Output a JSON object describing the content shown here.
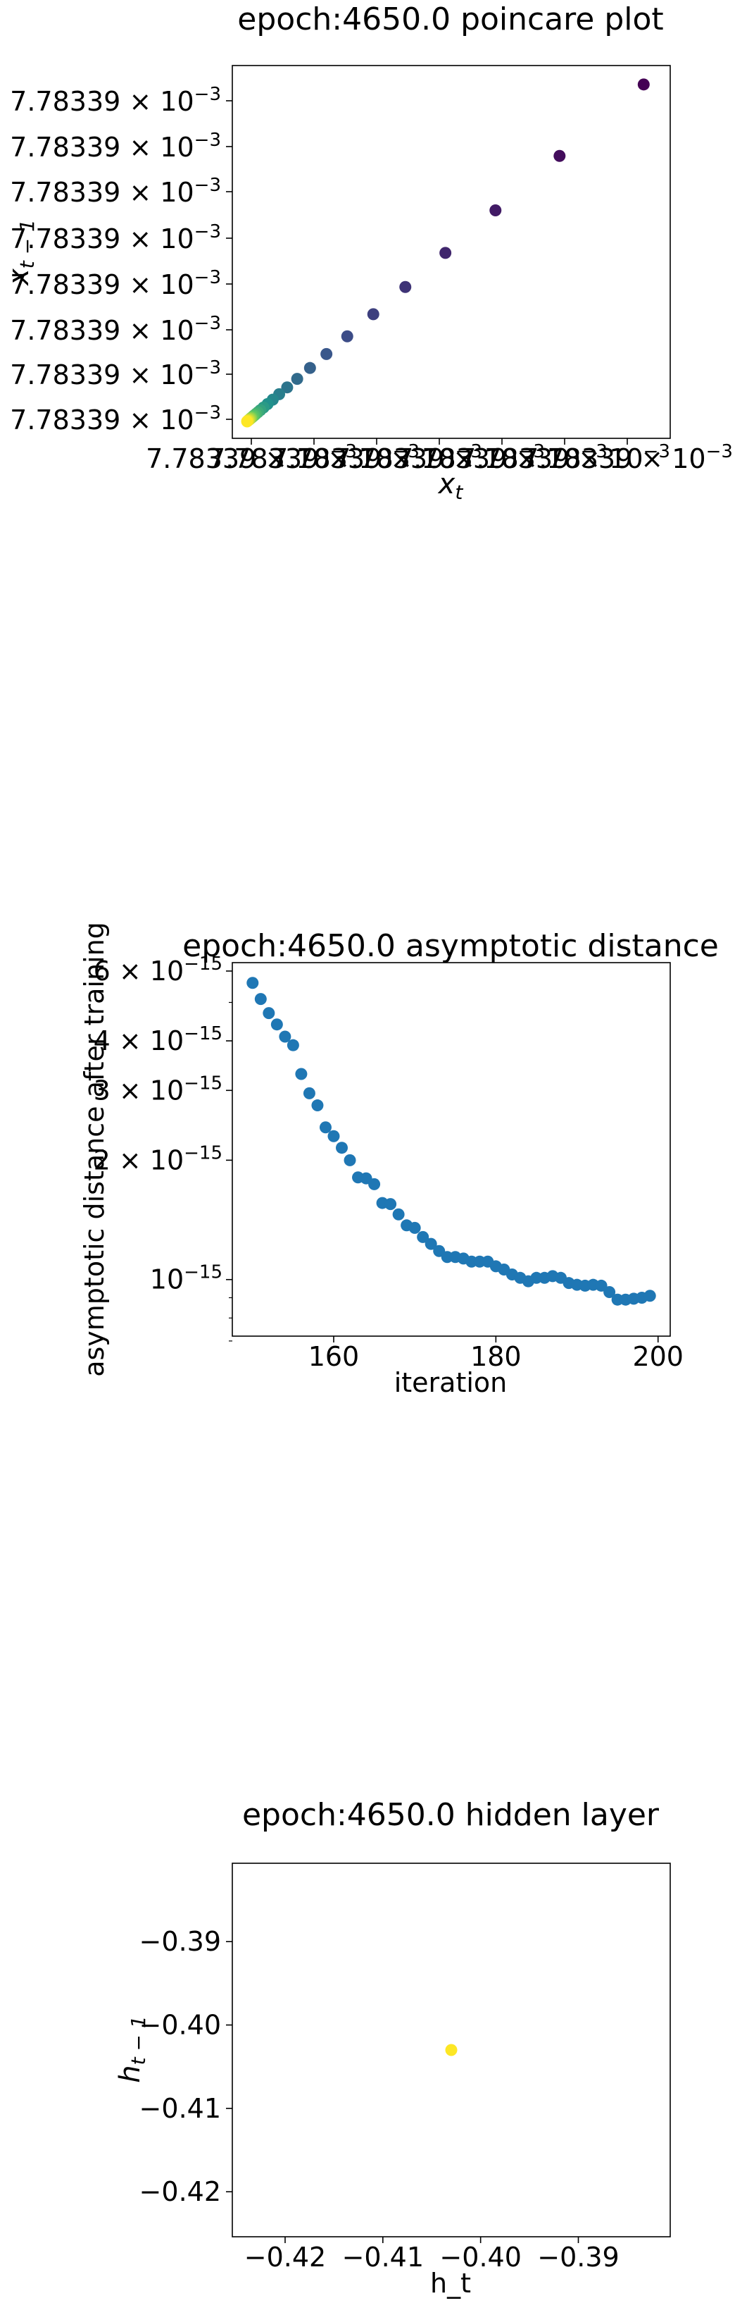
{
  "chart_data": [
    {
      "type": "scatter",
      "title": "epoch:4650.0 poincare plot",
      "xlabel": "x",
      "xlabel_sub": "t",
      "ylabel": "x",
      "ylabel_sub": "t − 1",
      "x_tick_labels": [
        "7.78339 × 10",
        "7.78339 × 10",
        "7.78339 × 10",
        "7.78339 × 10",
        "7.78339 × 10",
        "7.78339 × 10",
        "7.78339 × 10"
      ],
      "x_tick_exponent": "−3",
      "y_tick_labels": [
        "7.78339 × 10",
        "7.78339 × 10",
        "7.78339 × 10",
        "7.78339 × 10",
        "7.78339 × 10",
        "7.78339 × 10",
        "7.78339 × 10",
        "7.78339 × 10"
      ],
      "y_tick_exponent": "−3",
      "colormap": "viridis",
      "points": [
        {
          "x": 0.99,
          "y": 0.99
        },
        {
          "x": 0.78,
          "y": 0.78
        },
        {
          "x": 0.62,
          "y": 0.62
        },
        {
          "x": 0.495,
          "y": 0.495
        },
        {
          "x": 0.395,
          "y": 0.395
        },
        {
          "x": 0.315,
          "y": 0.315
        },
        {
          "x": 0.25,
          "y": 0.25
        },
        {
          "x": 0.198,
          "y": 0.198
        },
        {
          "x": 0.157,
          "y": 0.157
        },
        {
          "x": 0.125,
          "y": 0.125
        },
        {
          "x": 0.1,
          "y": 0.1
        },
        {
          "x": 0.08,
          "y": 0.08
        },
        {
          "x": 0.064,
          "y": 0.064
        },
        {
          "x": 0.051,
          "y": 0.051
        },
        {
          "x": 0.041,
          "y": 0.041
        },
        {
          "x": 0.033,
          "y": 0.033
        },
        {
          "x": 0.027,
          "y": 0.027
        },
        {
          "x": 0.022,
          "y": 0.022
        },
        {
          "x": 0.018,
          "y": 0.018
        },
        {
          "x": 0.015,
          "y": 0.015
        },
        {
          "x": 0.012,
          "y": 0.012
        },
        {
          "x": 0.01,
          "y": 0.01
        },
        {
          "x": 0.008,
          "y": 0.008
        },
        {
          "x": 0.006,
          "y": 0.006
        },
        {
          "x": 0.004,
          "y": 0.004
        },
        {
          "x": 0.002,
          "y": 0.002
        },
        {
          "x": 0.0,
          "y": 0.0
        }
      ]
    },
    {
      "type": "scatter",
      "title": "epoch:4650.0 asymptotic distance",
      "xlabel": "iteration",
      "ylabel": "asymptotic distance after training",
      "xlim": [
        147.5,
        201.5
      ],
      "ylim": [
        7.2e-16,
        6.3e-15
      ],
      "yscale": "log",
      "x_ticks": [
        160,
        180,
        200
      ],
      "x_tick_labels": [
        "160",
        "180",
        "200"
      ],
      "y_ticks": [
        1e-15,
        2e-15,
        3e-15,
        4e-15,
        6e-15
      ],
      "y_tick_labels": [
        {
          "mant": "10",
          "exp": "−15"
        },
        {
          "mant": "2 × 10",
          "exp": "−15"
        },
        {
          "mant": "3 × 10",
          "exp": "−15"
        },
        {
          "mant": "4 × 10",
          "exp": "−15"
        },
        {
          "mant": "6 × 10",
          "exp": "−15"
        }
      ],
      "color": "#1f77b4",
      "x": [
        150,
        151,
        152,
        153,
        154,
        155,
        156,
        157,
        158,
        159,
        160,
        161,
        162,
        163,
        164,
        165,
        166,
        167,
        168,
        169,
        170,
        171,
        172,
        173,
        174,
        175,
        176,
        177,
        178,
        179,
        180,
        181,
        182,
        183,
        184,
        185,
        186,
        187,
        188,
        189,
        190,
        191,
        192,
        193,
        194,
        195,
        196,
        197,
        198,
        199
      ],
      "y": [
        5.6e-15,
        5.1e-15,
        4.7e-15,
        4.4e-15,
        4.1e-15,
        3.9e-15,
        3.3e-15,
        2.95e-15,
        2.75e-15,
        2.42e-15,
        2.3e-15,
        2.15e-15,
        2e-15,
        1.81e-15,
        1.8e-15,
        1.74e-15,
        1.56e-15,
        1.55e-15,
        1.46e-15,
        1.37e-15,
        1.35e-15,
        1.28e-15,
        1.23e-15,
        1.18e-15,
        1.14e-15,
        1.14e-15,
        1.13e-15,
        1.11e-15,
        1.11e-15,
        1.11e-15,
        1.08e-15,
        1.06e-15,
        1.03e-15,
        1.01e-15,
        9.9e-16,
        1.01e-15,
        1.01e-15,
        1.02e-15,
        1.01e-15,
        9.8e-16,
        9.7e-16,
        9.65e-16,
        9.7e-16,
        9.65e-16,
        9.3e-16,
        8.9e-16,
        8.9e-16,
        8.95e-16,
        9e-16,
        9.1e-16
      ]
    },
    {
      "type": "scatter",
      "title": "epoch:4650.0 hidden layer",
      "xlabel": "h_t",
      "ylabel": "h",
      "ylabel_sub": "t − 1",
      "xlim": [
        -0.4254,
        -0.3806
      ],
      "ylim": [
        -0.4254,
        -0.3806
      ],
      "x_ticks": [
        -0.42,
        -0.41,
        -0.4,
        -0.39
      ],
      "x_tick_labels": [
        "−0.42",
        "−0.41",
        "−0.40",
        "−0.39"
      ],
      "y_ticks": [
        -0.42,
        -0.41,
        -0.4,
        -0.39
      ],
      "y_tick_labels": [
        "−0.42",
        "−0.41",
        "−0.40",
        "−0.39"
      ],
      "color": "#fde725",
      "x": [
        -0.403
      ],
      "y": [
        -0.403
      ]
    }
  ]
}
